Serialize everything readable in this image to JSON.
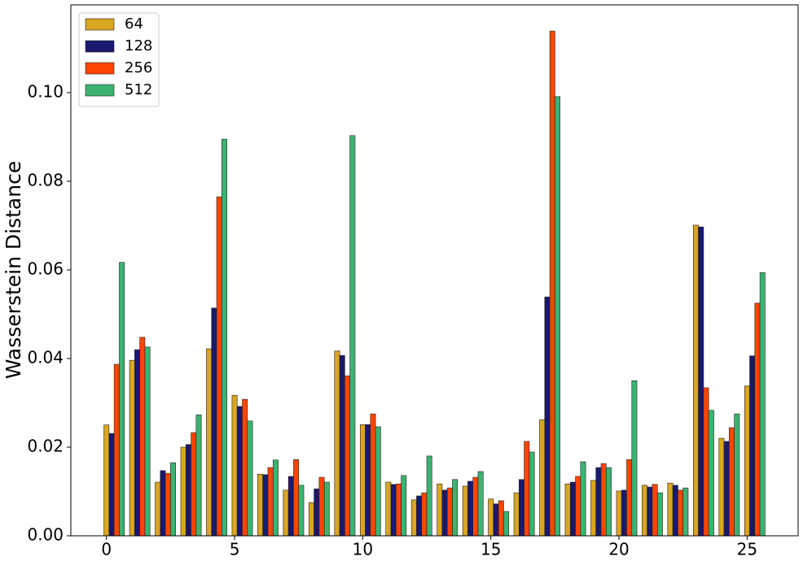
{
  "chart_data": {
    "type": "bar",
    "y_label": "Wasserstein Distance",
    "x": [
      0,
      1,
      2,
      3,
      4,
      5,
      6,
      7,
      8,
      9,
      10,
      11,
      12,
      13,
      14,
      15,
      16,
      17,
      18,
      19,
      20,
      21,
      22,
      23,
      24,
      25
    ],
    "series": [
      {
        "name": "64",
        "color": "#DAA520",
        "values": [
          0.025,
          0.0396,
          0.0121,
          0.02,
          0.0422,
          0.0317,
          0.0139,
          0.0103,
          0.0075,
          0.0417,
          0.0251,
          0.0121,
          0.0081,
          0.0117,
          0.0112,
          0.0083,
          0.0097,
          0.0262,
          0.0117,
          0.0125,
          0.0101,
          0.0114,
          0.0119,
          0.0701,
          0.022,
          0.0338
        ]
      },
      {
        "name": "128",
        "color": "#191970",
        "values": [
          0.0231,
          0.042,
          0.0147,
          0.0206,
          0.0514,
          0.0292,
          0.0138,
          0.0134,
          0.0106,
          0.0407,
          0.0251,
          0.0116,
          0.009,
          0.0103,
          0.0123,
          0.0072,
          0.0127,
          0.0539,
          0.0121,
          0.0154,
          0.0103,
          0.011,
          0.0114,
          0.0697,
          0.0213,
          0.0406
        ]
      },
      {
        "name": "256",
        "color": "#FF4500",
        "values": [
          0.0387,
          0.0448,
          0.0141,
          0.0233,
          0.0765,
          0.0308,
          0.0154,
          0.0172,
          0.0132,
          0.0361,
          0.0275,
          0.0117,
          0.0097,
          0.0108,
          0.0132,
          0.0079,
          0.0213,
          0.1139,
          0.0134,
          0.0163,
          0.0172,
          0.0116,
          0.0103,
          0.0334,
          0.0244,
          0.0525
        ]
      },
      {
        "name": "512",
        "color": "#3CB371",
        "values": [
          0.0617,
          0.0426,
          0.0165,
          0.0273,
          0.0895,
          0.0259,
          0.0171,
          0.0114,
          0.0121,
          0.0903,
          0.0246,
          0.0136,
          0.018,
          0.0127,
          0.0145,
          0.0055,
          0.0189,
          0.0991,
          0.0167,
          0.0154,
          0.035,
          0.0097,
          0.0108,
          0.0283,
          0.0275,
          0.0594
        ]
      }
    ],
    "xlim": [
      -1.39,
      26.99
    ],
    "xticks": [
      0,
      5,
      10,
      15,
      20,
      25
    ],
    "ylim": [
      0,
      0.1198
    ],
    "yticks": [
      {
        "value": 0,
        "label": "0.00"
      },
      {
        "value": 0.02,
        "label": "0.02"
      },
      {
        "value": 0.04,
        "label": "0.04"
      },
      {
        "value": 0.06,
        "label": "0.06"
      },
      {
        "value": 0.08,
        "label": "0.08"
      },
      {
        "value": 0.1,
        "label": "0.10"
      }
    ],
    "legend": "upper left",
    "grid": false
  }
}
